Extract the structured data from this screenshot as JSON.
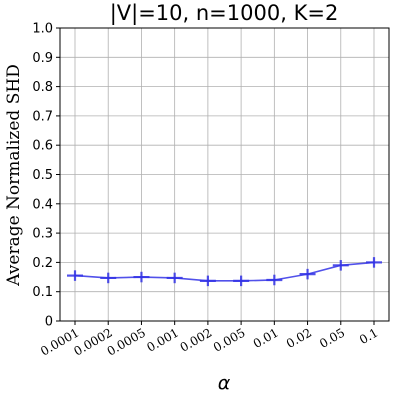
{
  "chart_data": {
    "type": "line",
    "title": "|V|=10, n=1000, K=2",
    "xlabel": "α",
    "ylabel": "Average Normalized SHD",
    "categories": [
      "0.0001",
      "0.0002",
      "0.0005",
      "0.001",
      "0.002",
      "0.005",
      "0.01",
      "0.02",
      "0.05",
      "0.1"
    ],
    "yticks": [
      "0",
      "0.1",
      "0.2",
      "0.3",
      "0.4",
      "0.5",
      "0.6",
      "0.7",
      "0.8",
      "0.9",
      "1.0"
    ],
    "ylim": [
      0,
      1.0
    ],
    "grid": true,
    "series": [
      {
        "values": [
          0.155,
          0.147,
          0.15,
          0.147,
          0.137,
          0.137,
          0.14,
          0.16,
          0.19,
          0.2
        ],
        "errors": [
          0.018,
          0.018,
          0.018,
          0.018,
          0.018,
          0.018,
          0.018,
          0.018,
          0.018,
          0.018
        ],
        "color": "#3232e6"
      }
    ]
  }
}
